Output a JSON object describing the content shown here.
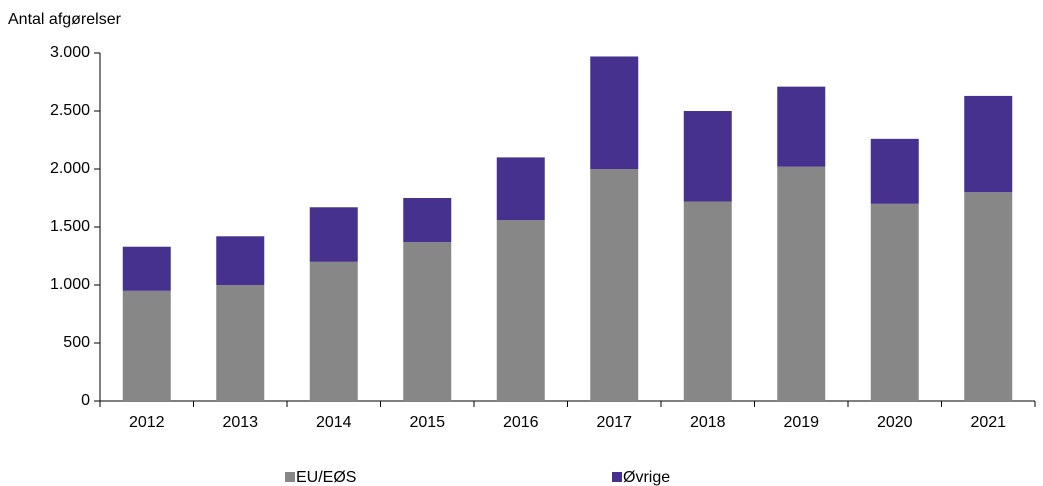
{
  "chart_data": {
    "type": "stacked_bar",
    "y_axis_label": "Antal afgørelser",
    "categories": [
      "2012",
      "2013",
      "2014",
      "2015",
      "2016",
      "2017",
      "2018",
      "2019",
      "2020",
      "2021"
    ],
    "series": [
      {
        "name": "EU/EØS",
        "color": "#878787",
        "values": [
          950,
          1000,
          1200,
          1370,
          1560,
          2000,
          1720,
          2020,
          1700,
          1800
        ]
      },
      {
        "name": "Øvrige",
        "color": "#47318f",
        "values": [
          380,
          420,
          470,
          380,
          540,
          970,
          780,
          690,
          560,
          830
        ]
      }
    ],
    "ylim": [
      0,
      3000
    ],
    "yticks": [
      0,
      500,
      {
        "value": 1000,
        "label": "1.000"
      },
      {
        "value": 1500,
        "label": "1.500"
      },
      {
        "value": 2000,
        "label": "2.000"
      },
      {
        "value": 2500,
        "label": "2.500"
      },
      {
        "value": 3000,
        "label": "3.000"
      }
    ],
    "grid": false,
    "legend": "bottom"
  }
}
